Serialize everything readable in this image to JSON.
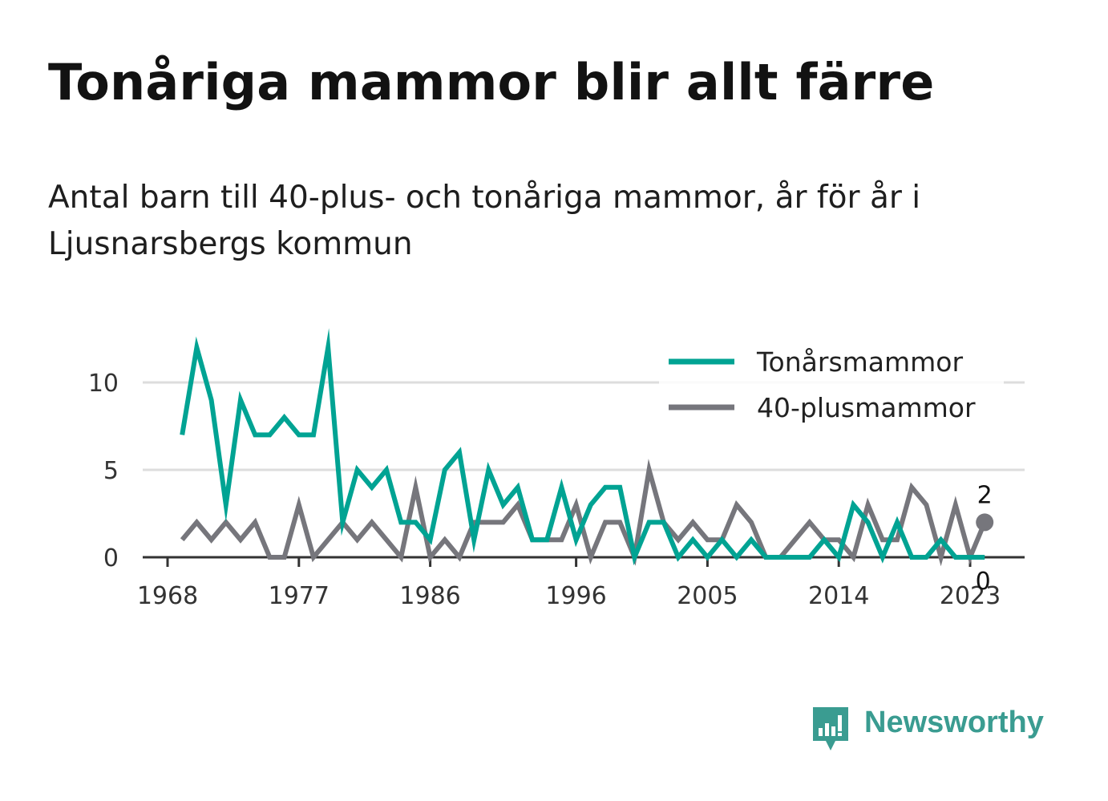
{
  "title": "Tonåriga mammor blir allt färre",
  "subtitle": "Antal barn till 40-plus- och tonåriga mammor, år för år i Ljusnarsbergs kommun",
  "brand": "Newsworthy",
  "colors": {
    "teen": "#00a393",
    "forty": "#76767c",
    "grid": "#dddddd",
    "axis": "#333333",
    "brand": "#3a9c91"
  },
  "chart_data": {
    "type": "line",
    "x": [
      1969,
      1970,
      1971,
      1972,
      1973,
      1974,
      1975,
      1976,
      1977,
      1978,
      1979,
      1980,
      1981,
      1982,
      1983,
      1984,
      1985,
      1986,
      1987,
      1988,
      1989,
      1990,
      1991,
      1992,
      1993,
      1994,
      1995,
      1996,
      1997,
      1998,
      1999,
      2000,
      2001,
      2002,
      2003,
      2004,
      2005,
      2006,
      2007,
      2008,
      2009,
      2010,
      2011,
      2012,
      2013,
      2014,
      2015,
      2016,
      2017,
      2018,
      2019,
      2020,
      2021,
      2022,
      2023,
      2024
    ],
    "series": [
      {
        "name": "Tonårsmammor",
        "color": "#00a393",
        "values": [
          7,
          12,
          9,
          3,
          9,
          7,
          7,
          8,
          7,
          7,
          12,
          2,
          5,
          4,
          5,
          2,
          2,
          1,
          5,
          6,
          1,
          5,
          3,
          4,
          1,
          1,
          4,
          1,
          3,
          4,
          4,
          0,
          2,
          2,
          0,
          1,
          0,
          1,
          0,
          1,
          0,
          0,
          0,
          0,
          1,
          0,
          3,
          2,
          0,
          2,
          0,
          0,
          1,
          0,
          0,
          0
        ]
      },
      {
        "name": "40-plusmammor",
        "color": "#76767c",
        "values": [
          1,
          2,
          1,
          2,
          1,
          2,
          0,
          0,
          3,
          0,
          1,
          2,
          1,
          2,
          1,
          0,
          4,
          0,
          1,
          0,
          2,
          2,
          2,
          3,
          1,
          1,
          1,
          3,
          0,
          2,
          2,
          0,
          5,
          2,
          1,
          2,
          1,
          1,
          3,
          2,
          0,
          0,
          1,
          2,
          1,
          1,
          0,
          3,
          1,
          1,
          4,
          3,
          0,
          3,
          0,
          2
        ]
      }
    ],
    "x_ticks": [
      "1968",
      "1977",
      "1986",
      "1996",
      "2005",
      "2014",
      "2023"
    ],
    "y_ticks": [
      "0",
      "5",
      "10"
    ],
    "ylim": [
      0,
      12
    ],
    "grid": "horizontal",
    "legend": "top-right",
    "end_labels": {
      "40-plusmammor": "2",
      "Tonårsmammor": "0"
    }
  }
}
